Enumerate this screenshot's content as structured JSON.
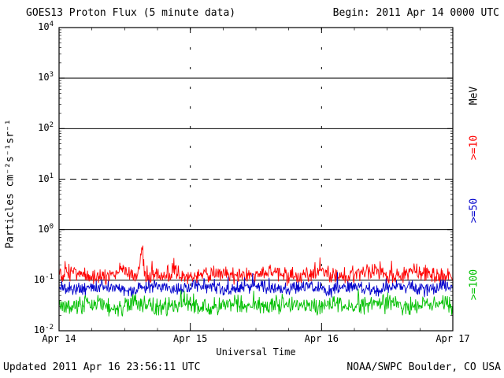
{
  "meta": {
    "begin_label": "Begin: 2011 Apr 14 0000 UTC",
    "updated_label": "Updated 2011 Apr 16 23:56:11 UTC",
    "credit_label": "NOAA/SWPC Boulder, CO USA"
  },
  "chart_data": {
    "type": "line",
    "title": "GOES13 Proton Flux (5 minute data)",
    "xlabel": "Universal Time",
    "ylabel": "Particles cm⁻²s⁻¹sr⁻¹",
    "y_unit_label": "MeV",
    "x_ticks": [
      "Apr 14",
      "Apr 15",
      "Apr 16",
      "Apr 17"
    ],
    "x_days": 3,
    "y_tick_exponents": [
      4,
      3,
      2,
      1,
      0,
      -1,
      -2
    ],
    "ylim_log10": [
      -2,
      4
    ],
    "yscale": "log",
    "solid_gridlines_log10": [
      3,
      2,
      0,
      -1
    ],
    "dashed_gridlines_log10": [
      1
    ],
    "frame_color": "#000000",
    "series": [
      {
        "name": ">=10",
        "color": "#ff0000",
        "baseline_flux": 0.13,
        "log_noise_amp": 0.2,
        "typical_range": [
          0.07,
          0.3
        ],
        "peak": {
          "t": 0.21,
          "flux": 0.5
        }
      },
      {
        "name": ">=50",
        "color": "#0000cc",
        "baseline_flux": 0.07,
        "log_noise_amp": 0.16,
        "typical_range": [
          0.04,
          0.15
        ]
      },
      {
        "name": ">=100",
        "color": "#00c000",
        "baseline_flux": 0.032,
        "log_noise_amp": 0.22,
        "typical_range": [
          0.013,
          0.07
        ]
      }
    ]
  }
}
